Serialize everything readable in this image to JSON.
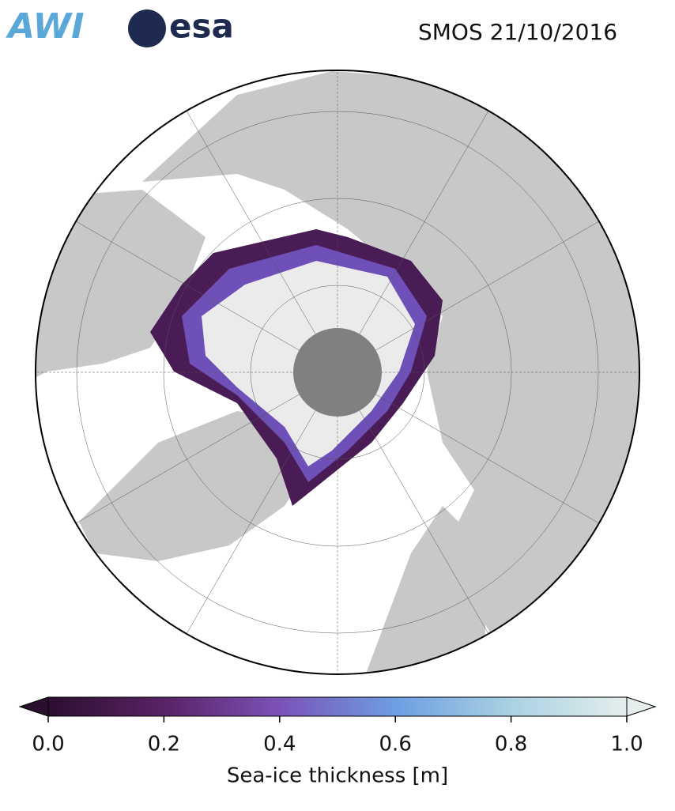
{
  "header": {
    "logos": [
      "AWI",
      "esa"
    ],
    "title": "SMOS 21/10/2016"
  },
  "colorbar": {
    "label": "Sea-ice thickness [m]",
    "xlim": [
      0,
      1
    ],
    "ticks": [
      {
        "value": 0,
        "label": "0.0"
      },
      {
        "value": 0.2,
        "label": "0.2"
      },
      {
        "value": 0.4,
        "label": "0.4"
      },
      {
        "value": 0.6,
        "label": "0.6"
      },
      {
        "value": 0.8,
        "label": "0.8"
      },
      {
        "value": 1,
        "label": "1.0"
      }
    ],
    "colormap": [
      {
        "value": 0,
        "color": "#2b0f2f"
      },
      {
        "value": 0.2,
        "color": "#5a2266"
      },
      {
        "value": 0.4,
        "color": "#7a52b8"
      },
      {
        "value": 0.6,
        "color": "#6d9ee2"
      },
      {
        "value": 0.8,
        "color": "#a9d2e2"
      },
      {
        "value": 1,
        "color": "#e6eeee"
      }
    ]
  }
}
